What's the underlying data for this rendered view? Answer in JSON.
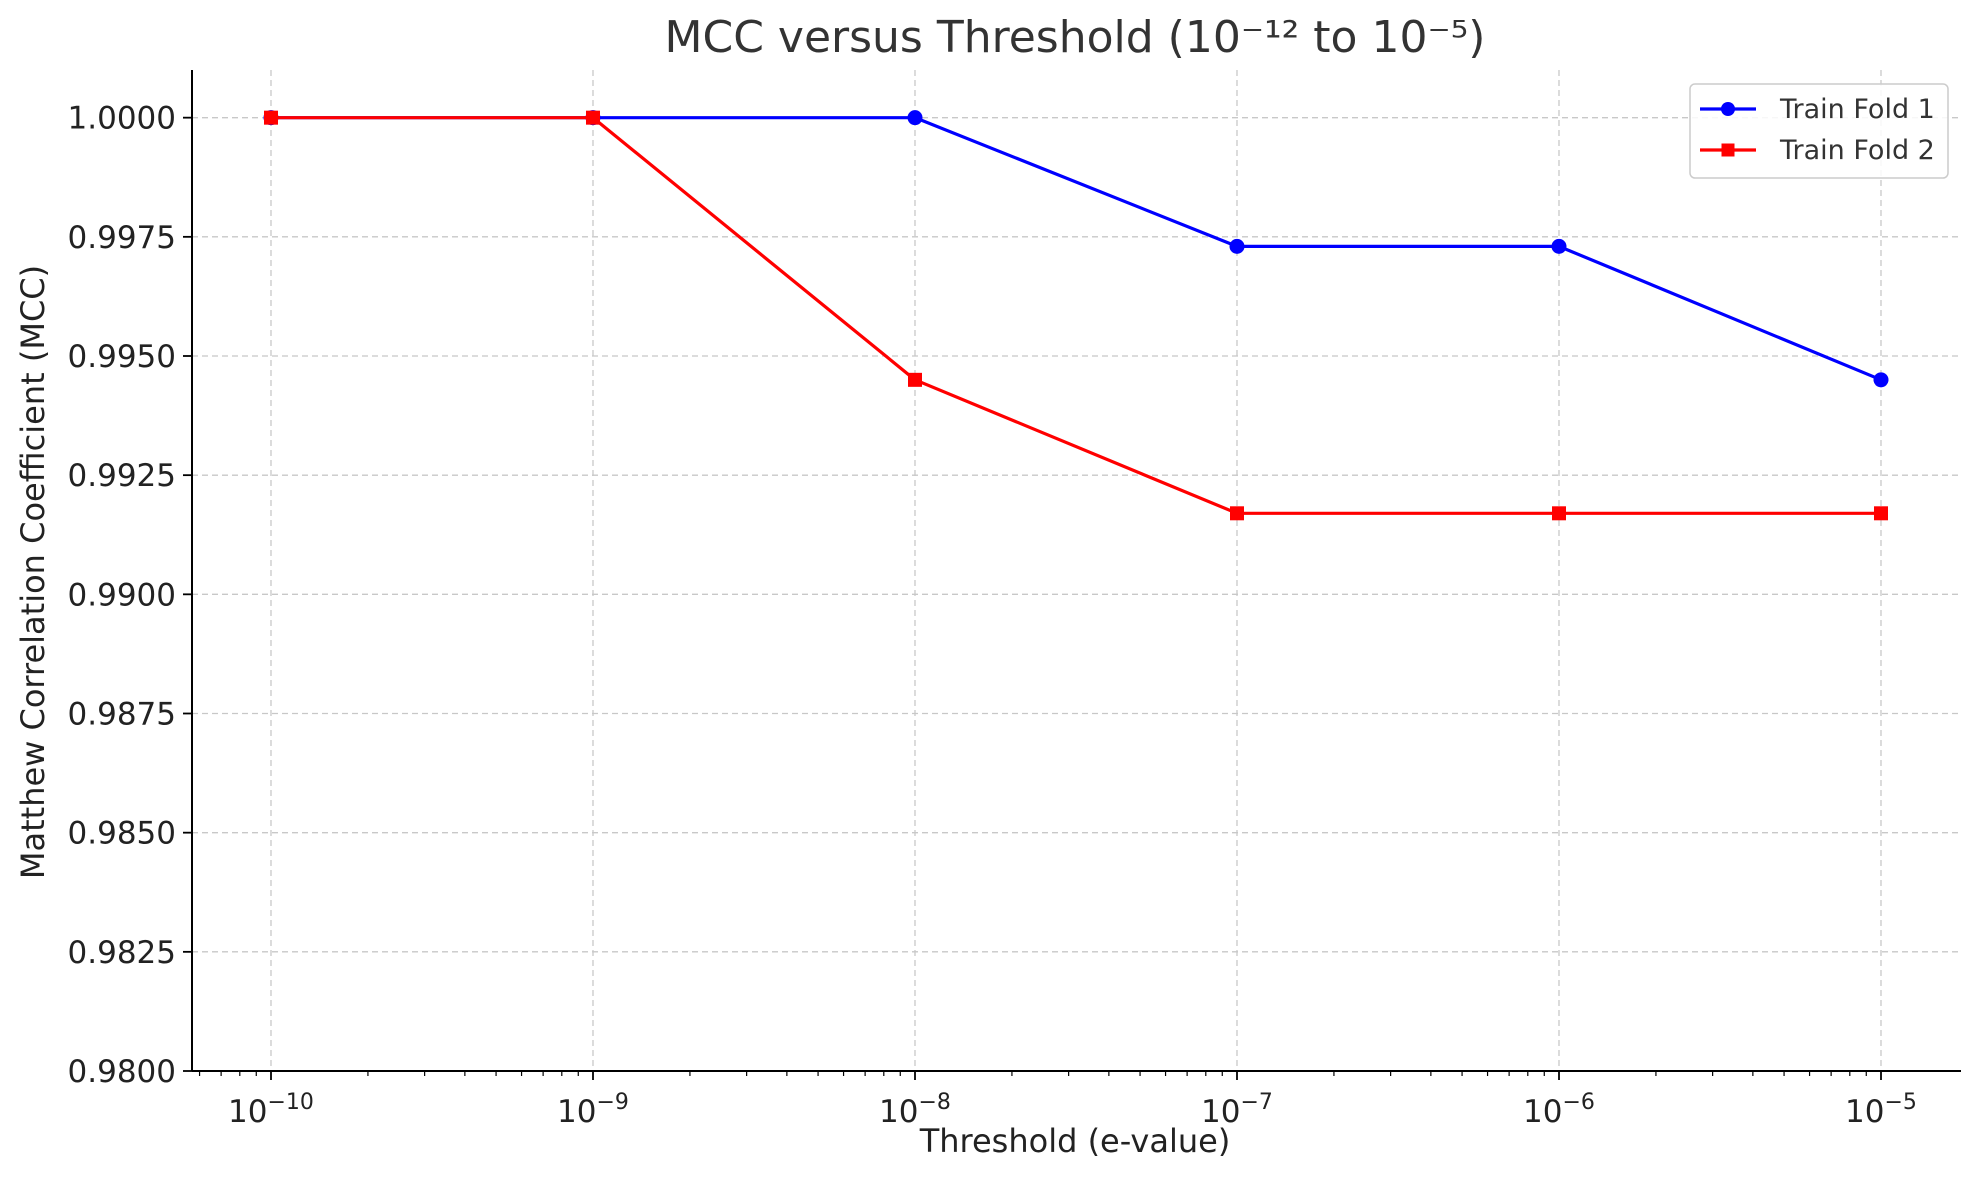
{
  "chart_data": {
    "type": "line",
    "title": "MCC versus Threshold (10⁻¹² to 10⁻⁵)",
    "xlabel": "Threshold (e-value)",
    "ylabel": "Matthew Correlation Coefficient (MCC)",
    "x_scale": "log",
    "x": [
      1e-10,
      1e-09,
      1e-08,
      1e-07,
      1e-06,
      1e-05
    ],
    "x_tick_labels": [
      {
        "base": "10",
        "exp": "−10"
      },
      {
        "base": "10",
        "exp": "−9"
      },
      {
        "base": "10",
        "exp": "−8"
      },
      {
        "base": "10",
        "exp": "−7"
      },
      {
        "base": "10",
        "exp": "−6"
      },
      {
        "base": "10",
        "exp": "−5"
      }
    ],
    "y_ticks": [
      "0.9800",
      "0.9825",
      "0.9850",
      "0.9875",
      "0.9900",
      "0.9925",
      "0.9950",
      "0.9975",
      "1.0000"
    ],
    "ylim": [
      0.98,
      1.001
    ],
    "grid": true,
    "legend_position": "top-right",
    "series": [
      {
        "name": "Train Fold 1",
        "color": "#0000ff",
        "marker": "circle",
        "values": [
          1.0,
          1.0,
          1.0,
          0.9973,
          0.9973,
          0.9945
        ]
      },
      {
        "name": "Train Fold 2",
        "color": "#ff0000",
        "marker": "square",
        "values": [
          1.0,
          1.0,
          0.9945,
          0.9917,
          0.9917,
          0.9917
        ]
      }
    ]
  }
}
